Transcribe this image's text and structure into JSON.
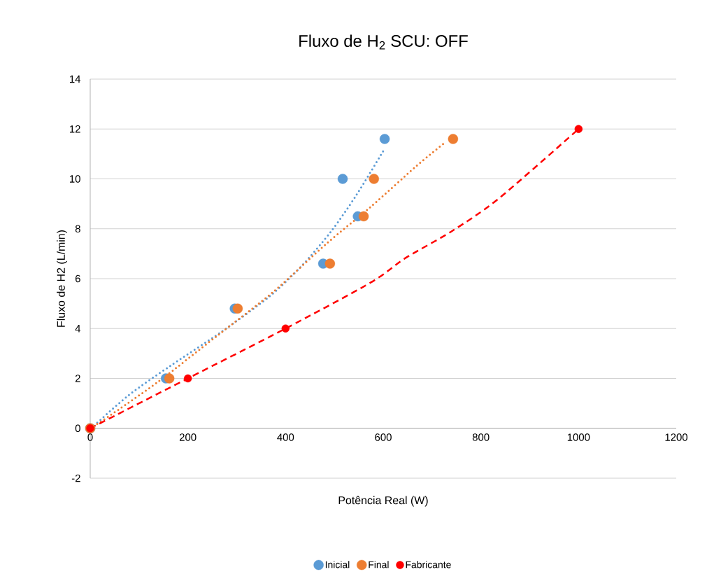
{
  "chart_data": {
    "type": "scatter",
    "title": "Fluxo de H$_{2}$ SCU: OFF",
    "xlabel": "Potência Real (W)",
    "ylabel": "Fluxo de H2 (L/min)",
    "xlim": [
      0,
      1200
    ],
    "xticks": [
      0,
      200,
      400,
      600,
      800,
      1000,
      1200
    ],
    "ylim": [
      -2,
      14
    ],
    "yticks": [
      -2,
      0,
      2,
      4,
      6,
      8,
      10,
      12,
      14
    ],
    "grid": "y",
    "legend": "bottom",
    "marker": "circle",
    "series": [
      {
        "name": "Inicial",
        "color": "#5b9bd5",
        "x": [
          0,
          155,
          296,
          477,
          548,
          517,
          603
        ],
        "values": [
          0,
          2.0,
          4.8,
          6.6,
          8.5,
          10.0,
          11.6
        ]
      },
      {
        "name": "Final",
        "color": "#ed7d31",
        "x": [
          0,
          162,
          302,
          491,
          560,
          581,
          743
        ],
        "values": [
          0,
          2.0,
          4.8,
          6.6,
          8.5,
          10.0,
          11.6
        ]
      },
      {
        "name": "Fabricante",
        "color": "#ff0000",
        "x": [
          0,
          200,
          400,
          1000
        ],
        "values": [
          0,
          2,
          4,
          12
        ]
      },
      {
        "type": "line",
        "color": "#5b9bd5",
        "marker": "none",
        "line_style": "dotted",
        "x": [
          2,
          79,
          166,
          268,
          366,
          432,
          493,
          545,
          601
        ],
        "values": [
          0,
          1.33,
          2.53,
          3.86,
          5.27,
          6.49,
          7.89,
          9.35,
          11.15
        ]
      },
      {
        "type": "line",
        "color": "#ed7d31",
        "marker": "none",
        "line_style": "dotted",
        "x": [
          0,
          38,
          140,
          258,
          376,
          483,
          575,
          667,
          726
        ],
        "values": [
          0,
          0.48,
          1.88,
          3.68,
          5.49,
          7.39,
          8.89,
          10.5,
          11.45
        ]
      },
      {
        "type": "line",
        "color": "#ff0000",
        "marker": "none",
        "line_style": "dashed",
        "x": [
          0,
          200,
          400,
          574,
          646,
          741,
          837,
          1000
        ],
        "values": [
          0,
          2,
          4,
          5.84,
          6.83,
          7.91,
          9.22,
          12
        ]
      }
    ]
  }
}
